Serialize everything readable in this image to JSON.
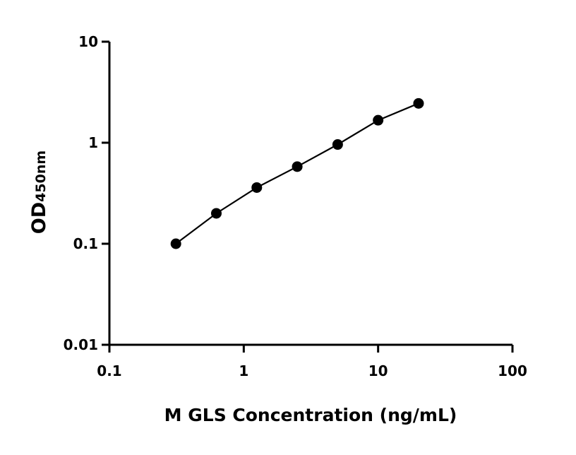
{
  "chart_data": {
    "type": "scatter",
    "title": "",
    "xlabel": "M GLS Concentration (ng/mL)",
    "ylabel_main": "OD",
    "ylabel_sub": "450nm",
    "x_scale": "log",
    "y_scale": "log",
    "xlim": [
      0.1,
      100
    ],
    "ylim": [
      0.01,
      10
    ],
    "x_ticks": [
      0.1,
      1,
      10,
      100
    ],
    "x_tick_labels": [
      "0.1",
      "1",
      "10",
      "100"
    ],
    "y_ticks": [
      0.01,
      0.1,
      1,
      10
    ],
    "y_tick_labels": [
      "0.01",
      "0.1",
      "1",
      "10"
    ],
    "grid": false,
    "fit_curve": true,
    "color": "#000000",
    "series": [
      {
        "x": [
          0.3125,
          0.625,
          1.25,
          2.5,
          5,
          10,
          20
        ],
        "y": [
          0.1,
          0.2,
          0.36,
          0.58,
          0.96,
          1.67,
          2.45
        ]
      }
    ]
  }
}
